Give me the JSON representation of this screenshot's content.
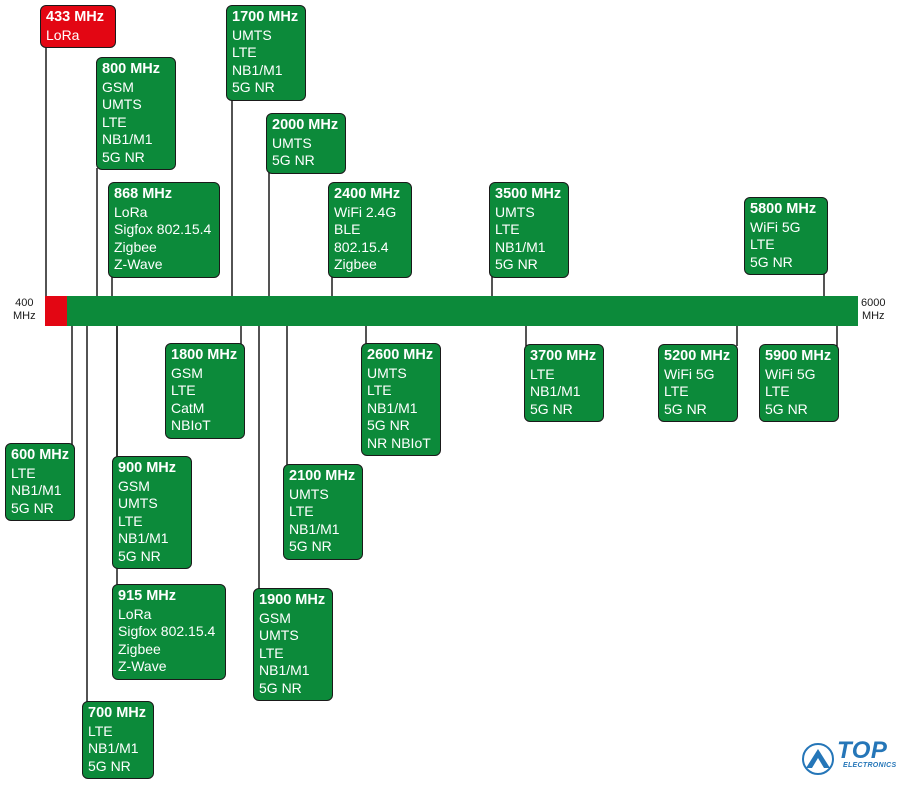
{
  "axis": {
    "start_label_line1": "400",
    "start_label_line2": "MHz",
    "end_label_line1": "6000",
    "end_label_line2": "MHz",
    "bar_color": "#0c8a3a",
    "highlight_color": "#e30613"
  },
  "bands": [
    {
      "id": "b433",
      "freq": "433 MHz",
      "techs": [
        "LoRa"
      ],
      "color": "red"
    },
    {
      "id": "b600",
      "freq": "600 MHz",
      "techs": [
        "LTE",
        "NB1/M1",
        "5G NR"
      ]
    },
    {
      "id": "b700",
      "freq": "700 MHz",
      "techs": [
        "LTE",
        "NB1/M1",
        "5G NR"
      ]
    },
    {
      "id": "b800",
      "freq": "800 MHz",
      "techs": [
        "GSM",
        "UMTS",
        "LTE",
        "NB1/M1",
        "5G NR"
      ]
    },
    {
      "id": "b868",
      "freq": "868 MHz",
      "techs": [
        "LoRa",
        "Sigfox 802.15.4",
        "Zigbee",
        "Z-Wave"
      ]
    },
    {
      "id": "b900",
      "freq": "900 MHz",
      "techs": [
        "GSM",
        "UMTS",
        "LTE",
        "NB1/M1",
        "5G NR"
      ]
    },
    {
      "id": "b915",
      "freq": "915 MHz",
      "techs": [
        "LoRa",
        "Sigfox 802.15.4",
        "Zigbee",
        "Z-Wave"
      ]
    },
    {
      "id": "b1700",
      "freq": "1700 MHz",
      "techs": [
        "UMTS",
        "LTE",
        "NB1/M1",
        "5G NR"
      ]
    },
    {
      "id": "b1800",
      "freq": "1800 MHz",
      "techs": [
        "GSM",
        "LTE",
        "CatM",
        "NBIoT"
      ]
    },
    {
      "id": "b1900",
      "freq": "1900 MHz",
      "techs": [
        "GSM",
        "UMTS",
        "LTE",
        "NB1/M1",
        "5G NR"
      ]
    },
    {
      "id": "b2000",
      "freq": "2000 MHz",
      "techs": [
        "UMTS",
        "5G NR"
      ]
    },
    {
      "id": "b2100",
      "freq": "2100 MHz",
      "techs": [
        "UMTS",
        "LTE",
        "NB1/M1",
        "5G NR"
      ]
    },
    {
      "id": "b2400",
      "freq": "2400 MHz",
      "techs": [
        "WiFi 2.4G",
        "BLE",
        "802.15.4",
        "Zigbee"
      ]
    },
    {
      "id": "b2600",
      "freq": "2600 MHz",
      "techs": [
        "UMTS",
        "LTE",
        "NB1/M1",
        "5G NR",
        "NR NBIoT"
      ]
    },
    {
      "id": "b3500",
      "freq": "3500 MHz",
      "techs": [
        "UMTS",
        "LTE",
        "NB1/M1",
        "5G NR"
      ]
    },
    {
      "id": "b3700",
      "freq": "3700 MHz",
      "techs": [
        "LTE",
        "NB1/M1",
        "5G NR"
      ]
    },
    {
      "id": "b5200",
      "freq": "5200 MHz",
      "techs": [
        "WiFi 5G",
        "LTE",
        "5G NR"
      ]
    },
    {
      "id": "b5800",
      "freq": "5800 MHz",
      "techs": [
        "WiFi 5G",
        "LTE",
        "5G NR"
      ]
    },
    {
      "id": "b5900",
      "freq": "5900 MHz",
      "techs": [
        "WiFi 5G",
        "LTE",
        "5G NR"
      ]
    }
  ],
  "logo": {
    "word": "TOP",
    "sub": "ELECTRONICS",
    "color": "#2576b8",
    "icon": "mountain-arrow-icon"
  }
}
